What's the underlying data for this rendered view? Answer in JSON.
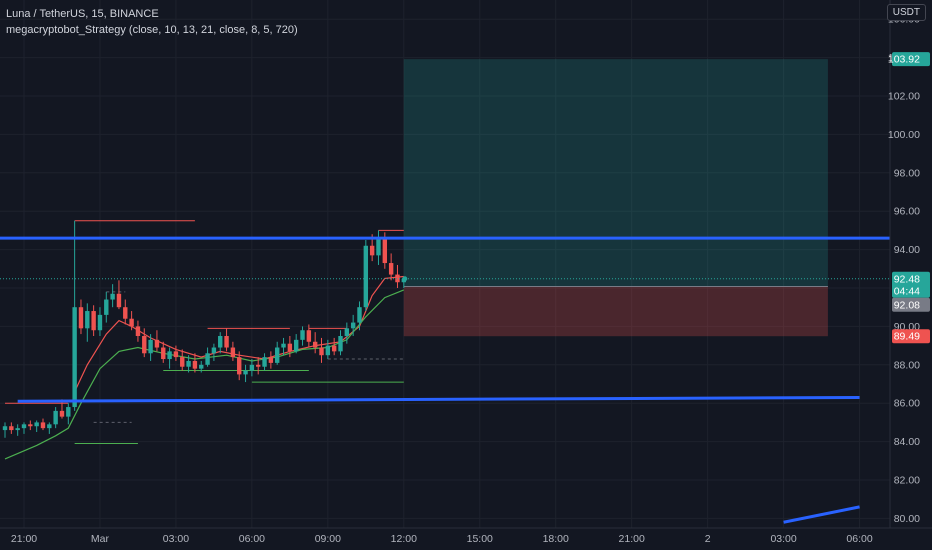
{
  "header": {
    "symbol_line": "Luna / TetherUS, 15, BINANCE",
    "indicator_line": "megacryptobot_Strategy (close, 10, 13, 21, close, 8, 5, 720)",
    "currency": "USDT"
  },
  "colors": {
    "background": "#131722",
    "grid": "#1e222d",
    "up": "#26a69a",
    "down": "#ef5350",
    "blue_line": "#2962ff",
    "target": "#26a69a",
    "stop": "#ef5350",
    "ema_fast": "#ef5350",
    "ema_slow": "#4caf50"
  },
  "chart_data": {
    "type": "candlestick",
    "ylim": [
      79.5,
      107
    ],
    "y_ticks": [
      80.0,
      82.0,
      84.0,
      86.0,
      88.0,
      90.0,
      92.0,
      94.0,
      96.0,
      98.0,
      100.0,
      102.0,
      104.0,
      106.0
    ],
    "x_ticks": [
      {
        "label": "21:00",
        "t": 0
      },
      {
        "label": "Mar",
        "t": 12
      },
      {
        "label": "03:00",
        "t": 24
      },
      {
        "label": "06:00",
        "t": 36
      },
      {
        "label": "09:00",
        "t": 48
      },
      {
        "label": "12:00",
        "t": 60
      },
      {
        "label": "15:00",
        "t": 72
      },
      {
        "label": "18:00",
        "t": 84
      },
      {
        "label": "21:00",
        "t": 96
      },
      {
        "label": "2",
        "t": 108
      },
      {
        "label": "03:00",
        "t": 120
      },
      {
        "label": "06:00",
        "t": 132
      }
    ],
    "candles": [
      [
        -3,
        84.6,
        85.0,
        84.2,
        84.8
      ],
      [
        -2,
        84.8,
        85.0,
        84.4,
        84.6
      ],
      [
        -1,
        84.6,
        84.9,
        84.3,
        84.7
      ],
      [
        0,
        84.7,
        85.0,
        84.4,
        84.9
      ],
      [
        1,
        84.9,
        85.1,
        84.6,
        84.8
      ],
      [
        2,
        84.8,
        85.1,
        84.5,
        85.0
      ],
      [
        3,
        85.0,
        85.2,
        84.6,
        84.7
      ],
      [
        4,
        84.7,
        85.0,
        84.4,
        84.9
      ],
      [
        5,
        84.9,
        85.8,
        84.7,
        85.6
      ],
      [
        6,
        85.6,
        86.2,
        85.2,
        85.3
      ],
      [
        7,
        85.3,
        86.0,
        84.9,
        85.8
      ],
      [
        8,
        85.8,
        95.5,
        85.6,
        91.0
      ],
      [
        9,
        91.0,
        91.4,
        89.6,
        89.9
      ],
      [
        10,
        89.9,
        91.2,
        89.2,
        90.8
      ],
      [
        11,
        90.8,
        91.1,
        89.5,
        89.8
      ],
      [
        12,
        89.8,
        91.0,
        89.5,
        90.6
      ],
      [
        13,
        90.6,
        91.8,
        90.2,
        91.4
      ],
      [
        14,
        91.4,
        92.2,
        91.0,
        91.7
      ],
      [
        15,
        91.7,
        92.4,
        90.9,
        91.0
      ],
      [
        16,
        91.0,
        91.4,
        90.1,
        90.4
      ],
      [
        17,
        90.4,
        90.8,
        89.8,
        90.0
      ],
      [
        18,
        90.0,
        90.3,
        89.2,
        89.5
      ],
      [
        19,
        89.5,
        89.9,
        88.4,
        88.6
      ],
      [
        20,
        88.6,
        89.6,
        88.2,
        89.3
      ],
      [
        21,
        89.3,
        89.8,
        88.7,
        88.9
      ],
      [
        22,
        88.9,
        89.2,
        88.1,
        88.3
      ],
      [
        23,
        88.3,
        88.9,
        87.8,
        88.7
      ],
      [
        24,
        88.7,
        89.0,
        88.2,
        88.4
      ],
      [
        25,
        88.4,
        88.8,
        87.7,
        87.9
      ],
      [
        26,
        87.9,
        88.5,
        87.6,
        88.2
      ],
      [
        27,
        88.2,
        88.6,
        87.6,
        87.8
      ],
      [
        28,
        87.8,
        88.2,
        87.6,
        88.0
      ],
      [
        29,
        88.0,
        88.9,
        87.9,
        88.6
      ],
      [
        30,
        88.6,
        89.1,
        88.2,
        88.9
      ],
      [
        31,
        88.9,
        89.7,
        88.6,
        89.5
      ],
      [
        32,
        89.5,
        89.9,
        88.7,
        88.9
      ],
      [
        33,
        88.9,
        89.2,
        88.2,
        88.4
      ],
      [
        34,
        88.4,
        88.7,
        87.2,
        87.5
      ],
      [
        35,
        87.5,
        88.0,
        87.1,
        87.7
      ],
      [
        36,
        87.7,
        88.3,
        87.4,
        88.0
      ],
      [
        37,
        88.0,
        88.4,
        87.5,
        87.9
      ],
      [
        38,
        87.9,
        88.6,
        87.7,
        88.4
      ],
      [
        39,
        88.4,
        88.7,
        87.8,
        88.1
      ],
      [
        40,
        88.1,
        89.2,
        88.0,
        88.9
      ],
      [
        41,
        88.9,
        89.4,
        88.5,
        89.1
      ],
      [
        42,
        89.1,
        89.5,
        88.4,
        88.7
      ],
      [
        43,
        88.7,
        89.6,
        88.6,
        89.3
      ],
      [
        44,
        89.3,
        90.0,
        89.0,
        89.8
      ],
      [
        45,
        89.8,
        90.1,
        88.9,
        89.2
      ],
      [
        46,
        89.2,
        89.7,
        88.6,
        88.9
      ],
      [
        47,
        88.9,
        89.4,
        88.1,
        88.5
      ],
      [
        48,
        88.5,
        89.3,
        88.3,
        89.0
      ],
      [
        49,
        89.0,
        89.4,
        88.5,
        88.7
      ],
      [
        50,
        88.7,
        89.8,
        88.5,
        89.5
      ],
      [
        51,
        89.5,
        90.2,
        89.1,
        89.9
      ],
      [
        52,
        89.9,
        90.6,
        89.5,
        90.2
      ],
      [
        53,
        90.2,
        91.3,
        89.8,
        91.0
      ],
      [
        54,
        91.0,
        94.5,
        90.8,
        94.2
      ],
      [
        55,
        94.2,
        94.8,
        93.4,
        93.7
      ],
      [
        56,
        93.7,
        95.0,
        93.2,
        94.6
      ],
      [
        57,
        94.6,
        94.9,
        93.0,
        93.3
      ],
      [
        58,
        93.3,
        93.8,
        92.4,
        92.7
      ],
      [
        59,
        92.7,
        93.2,
        92.0,
        92.3
      ],
      [
        60,
        92.3,
        92.6,
        92.0,
        92.48
      ]
    ],
    "ema_fast": [
      [
        8,
        86.6
      ],
      [
        10,
        88.0
      ],
      [
        13,
        89.6
      ],
      [
        15,
        90.3
      ],
      [
        17,
        90.0
      ],
      [
        20,
        89.4
      ],
      [
        24,
        88.8
      ],
      [
        28,
        88.4
      ],
      [
        31,
        88.7
      ],
      [
        34,
        88.5
      ],
      [
        38,
        88.3
      ],
      [
        42,
        88.7
      ],
      [
        46,
        89.0
      ],
      [
        50,
        89.2
      ],
      [
        53,
        90.0
      ],
      [
        55,
        91.6
      ],
      [
        57,
        92.5
      ],
      [
        60,
        92.6
      ]
    ],
    "ema_slow": [
      [
        -3,
        83.1
      ],
      [
        2,
        83.8
      ],
      [
        5,
        84.3
      ],
      [
        7,
        84.7
      ],
      [
        9,
        86.0
      ],
      [
        12,
        87.8
      ],
      [
        15,
        88.7
      ],
      [
        18,
        88.9
      ],
      [
        22,
        88.6
      ],
      [
        27,
        88.3
      ],
      [
        32,
        88.5
      ],
      [
        36,
        88.2
      ],
      [
        40,
        88.4
      ],
      [
        44,
        88.8
      ],
      [
        48,
        88.9
      ],
      [
        51,
        89.3
      ],
      [
        54,
        90.5
      ],
      [
        57,
        91.5
      ],
      [
        60,
        91.9
      ]
    ],
    "level_lines": [
      {
        "type": "high",
        "t1": 8,
        "t2": 27,
        "price": 95.5
      },
      {
        "type": "high",
        "t1": 29,
        "t2": 42,
        "price": 89.9
      },
      {
        "type": "high",
        "t1": 45,
        "t2": 51,
        "price": 89.9
      },
      {
        "type": "high",
        "t1": 56,
        "t2": 60,
        "price": 95.0
      },
      {
        "type": "high",
        "t1": -3,
        "t2": 7,
        "price": 86.0
      },
      {
        "type": "low",
        "t1": 22,
        "t2": 45,
        "price": 87.7
      },
      {
        "type": "low",
        "t1": 36,
        "t2": 60,
        "price": 87.1
      },
      {
        "type": "low",
        "t1": 8,
        "t2": 18,
        "price": 83.9
      },
      {
        "type": "dash",
        "t1": 13,
        "t2": 16,
        "price": 91.8
      },
      {
        "type": "dash",
        "t1": 11,
        "t2": 17,
        "price": 85.0
      },
      {
        "type": "dash",
        "t1": 48,
        "t2": 60,
        "price": 88.3
      }
    ],
    "horizontal_lines": [
      {
        "price": 94.6
      }
    ],
    "trend_lines": [
      {
        "t1": -1,
        "p1": 86.1,
        "t2": 132,
        "p2": 86.3
      },
      {
        "t1": 120,
        "p1": 79.8,
        "t2": 132,
        "p2": 80.6
      }
    ],
    "position": {
      "t_start": 60,
      "t_end": 127,
      "entry": 92.08,
      "target": 103.92,
      "stop": 89.49
    },
    "price_tags": [
      {
        "label": "103.92",
        "price": 103.92,
        "color": "#26a69a"
      },
      {
        "label": "92.48",
        "sub": "04:44",
        "price": 92.48,
        "color": "#26a69a"
      },
      {
        "label": "92.08",
        "price": 92.08,
        "color": "#787b86"
      },
      {
        "label": "89.49",
        "price": 89.49,
        "color": "#ef5350"
      }
    ]
  }
}
